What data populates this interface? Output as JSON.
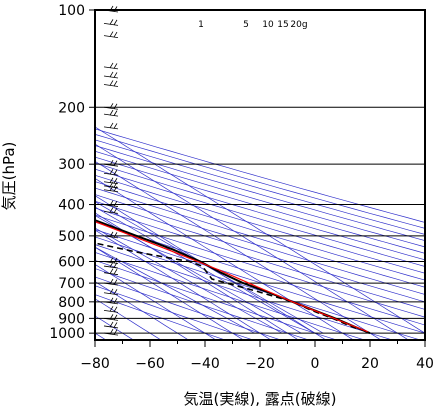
{
  "chart_data": {
    "type": "line",
    "xlabel": "気温(実線), 露点(破線)",
    "ylabel": "気圧(hPa)",
    "xlim": [
      -80,
      40
    ],
    "ylim": [
      1050,
      100
    ],
    "y_scale": "log",
    "x_ticks": [
      -80,
      -60,
      -40,
      -20,
      0,
      20,
      40
    ],
    "x_tick_labels": [
      "−80",
      "−60",
      "−40",
      "−20",
      "0",
      "20",
      "40"
    ],
    "y_ticks": [
      100,
      200,
      300,
      400,
      500,
      600,
      700,
      800,
      900,
      1000
    ],
    "y_tick_labels": [
      "100",
      "200",
      "300",
      "400",
      "500",
      "600",
      "700",
      "800",
      "900",
      "1000"
    ],
    "grid": true,
    "mixing_ratio_labels": [
      "1",
      "5",
      "10",
      "15",
      "20g"
    ],
    "colors": {
      "temperature": "#000000",
      "dewpoint": "#000000",
      "parcel": "#ff0000",
      "background_lines": "#3333cc",
      "grid": "#000000"
    },
    "series": [
      {
        "style": "solid",
        "points": [
          [
            -70,
            100
          ],
          [
            -67,
            115
          ],
          [
            -70,
            130
          ],
          [
            -64,
            165
          ],
          [
            -59,
            200
          ],
          [
            -48,
            250
          ],
          [
            -37,
            300
          ],
          [
            -34,
            320
          ],
          [
            -30,
            340
          ],
          [
            -14,
            450
          ],
          [
            -3,
            550
          ],
          [
            0,
            600
          ],
          [
            1,
            650
          ],
          [
            3,
            700
          ],
          [
            7,
            750
          ],
          [
            10,
            800
          ],
          [
            13,
            850
          ],
          [
            16,
            900
          ],
          [
            18,
            950
          ],
          [
            20,
            1000
          ]
        ]
      },
      {
        "style": "dashed",
        "points": [
          [
            -73,
            340
          ],
          [
            -39,
            340
          ],
          [
            -38,
            400
          ],
          [
            -35,
            480
          ],
          [
            -28,
            525
          ],
          [
            -18,
            560
          ],
          [
            -4,
            600
          ],
          [
            -2,
            620
          ],
          [
            -6,
            680
          ],
          [
            -3,
            700
          ],
          [
            3,
            740
          ],
          [
            10,
            800
          ],
          [
            12,
            850
          ],
          [
            15,
            900
          ],
          [
            17,
            950
          ],
          [
            18,
            970
          ]
        ]
      },
      {
        "style": "parcel",
        "points": [
          [
            -80,
            148
          ],
          [
            -60,
            205
          ],
          [
            -40,
            290
          ],
          [
            -20,
            410
          ],
          [
            -5,
            550
          ],
          [
            2,
            640
          ],
          [
            6,
            720
          ],
          [
            10,
            800
          ],
          [
            14,
            870
          ],
          [
            17,
            930
          ],
          [
            20,
            990
          ]
        ]
      }
    ]
  }
}
